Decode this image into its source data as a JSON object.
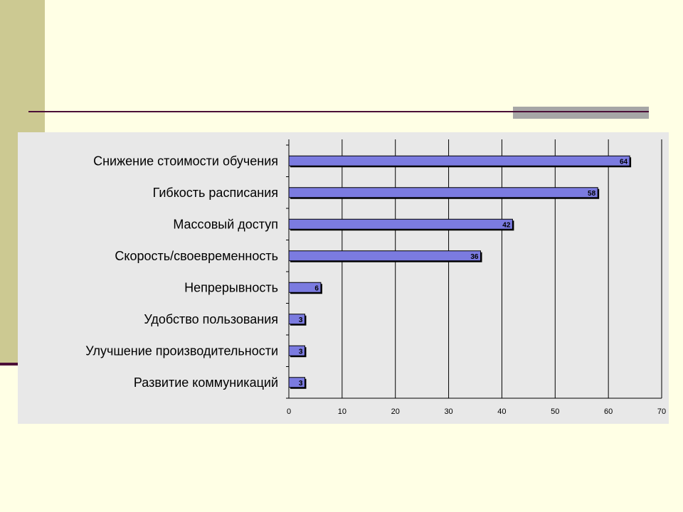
{
  "slide": {
    "colors": {
      "background": "#FFFFE5",
      "side_band": "#CCC992",
      "accent_line": "#4B0F37",
      "accent_gray": "#A6A6A6",
      "chart_background": "#E8E8E8",
      "bar_fill": "#7B7BE0",
      "bar_shadow": "#000000",
      "grid": "#000000"
    }
  },
  "chart_data": {
    "type": "bar",
    "orientation": "horizontal",
    "categories": [
      "Снижение стоимости обучения",
      "Гибкость расписания",
      "Массовый доступ",
      "Скорость/своевременность",
      "Непрерывность",
      "Удобство пользования",
      "Улучшение производительности",
      "Развитие коммуникаций"
    ],
    "values": [
      64,
      58,
      42,
      36,
      6,
      3,
      3,
      3
    ],
    "data_labels": [
      "64",
      "58",
      "42",
      "36",
      "6",
      "3",
      "3",
      "3"
    ],
    "xlim": [
      0,
      70
    ],
    "xticks": [
      "0",
      "10",
      "20",
      "30",
      "40",
      "50",
      "60",
      "70"
    ],
    "grid": true,
    "legend": "none"
  }
}
